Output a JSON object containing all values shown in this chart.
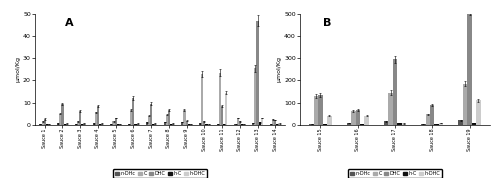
{
  "panel_A": {
    "title": "A",
    "ylabel": "μmol/Kg",
    "ylim": [
      0,
      50
    ],
    "yticks": [
      0,
      10,
      20,
      30,
      40,
      50
    ],
    "categories": [
      "Sauce 1",
      "Sauce 2",
      "Sauce 3",
      "Sauce 4",
      "Sauce 5",
      "Sauce 6",
      "Sauce 7",
      "Sauce 8",
      "Sauce 9",
      "Sauce 10",
      "Sauce 11",
      "Sauce 12",
      "Sauce 13",
      "Sauce 14"
    ],
    "series": {
      "n-DHc": [
        0.3,
        0.5,
        0.3,
        0.5,
        0.2,
        0.3,
        1.0,
        1.2,
        1.3,
        0.5,
        0.4,
        0.2,
        0.7,
        0.3
      ],
      "C": [
        1.5,
        5.0,
        1.5,
        5.5,
        1.5,
        6.5,
        4.0,
        4.5,
        6.5,
        23.0,
        23.5,
        3.0,
        25.5,
        2.5
      ],
      "DHC": [
        2.5,
        9.5,
        6.0,
        8.5,
        3.0,
        12.0,
        9.5,
        6.5,
        1.8,
        1.5,
        8.5,
        1.5,
        47.0,
        2.0
      ],
      "h-C": [
        0.2,
        0.2,
        0.2,
        0.2,
        0.2,
        0.2,
        0.3,
        0.3,
        0.2,
        0.2,
        0.2,
        0.2,
        1.0,
        0.2
      ],
      "h-DHC": [
        0.3,
        0.5,
        0.5,
        0.5,
        0.3,
        0.5,
        0.5,
        0.5,
        0.3,
        0.3,
        14.5,
        0.3,
        3.0,
        0.5
      ]
    },
    "errors": {
      "n-DHc": [
        0.05,
        0.05,
        0.05,
        0.05,
        0.05,
        0.05,
        0.1,
        0.1,
        0.1,
        0.05,
        0.05,
        0.05,
        0.1,
        0.05
      ],
      "C": [
        0.2,
        0.3,
        0.2,
        0.3,
        0.2,
        0.4,
        0.3,
        0.3,
        0.5,
        1.5,
        1.5,
        0.2,
        1.5,
        0.2
      ],
      "DHC": [
        0.3,
        0.5,
        0.5,
        0.5,
        0.2,
        0.8,
        0.6,
        0.5,
        0.1,
        0.1,
        0.5,
        0.1,
        2.5,
        0.1
      ],
      "h-C": [
        0.02,
        0.02,
        0.02,
        0.02,
        0.02,
        0.02,
        0.02,
        0.02,
        0.02,
        0.02,
        0.02,
        0.02,
        0.05,
        0.02
      ],
      "h-DHC": [
        0.02,
        0.03,
        0.03,
        0.03,
        0.02,
        0.03,
        0.03,
        0.03,
        0.02,
        0.02,
        0.8,
        0.02,
        0.2,
        0.03
      ]
    }
  },
  "panel_B": {
    "title": "B",
    "ylabel": "μmol/Kg",
    "ylim": [
      0,
      500
    ],
    "yticks": [
      0,
      100,
      200,
      300,
      400,
      500
    ],
    "categories": [
      "Sauce 15",
      "Sauce 16",
      "Sauce 17",
      "Sauce 18",
      "Sauce 19"
    ],
    "series": {
      "n-DHc": [
        2.0,
        8.0,
        15.0,
        3.0,
        20.0
      ],
      "C": [
        130.0,
        60.0,
        145.0,
        47.0,
        185.0
      ],
      "DHC": [
        135.0,
        65.0,
        295.0,
        88.0,
        515.0
      ],
      "h-C": [
        1.0,
        2.0,
        8.0,
        2.0,
        8.0
      ],
      "h-DHC": [
        40.0,
        40.0,
        5.0,
        8.0,
        110.0
      ]
    },
    "errors": {
      "n-DHc": [
        0.2,
        0.5,
        1.0,
        0.2,
        1.5
      ],
      "C": [
        8.0,
        4.0,
        10.0,
        3.0,
        12.0
      ],
      "DHC": [
        8.0,
        4.0,
        15.0,
        5.0,
        20.0
      ],
      "h-C": [
        0.05,
        0.1,
        0.5,
        0.1,
        0.5
      ],
      "h-DHC": [
        2.0,
        2.0,
        0.3,
        0.5,
        6.0
      ]
    }
  },
  "series_names": [
    "n-DHc",
    "C",
    "DHC",
    "h-C",
    "h-DHC"
  ],
  "colors": [
    "#555555",
    "#aaaaaa",
    "#888888",
    "#111111",
    "#cccccc"
  ],
  "bar_width": 0.12,
  "figure_bg": "#ffffff"
}
